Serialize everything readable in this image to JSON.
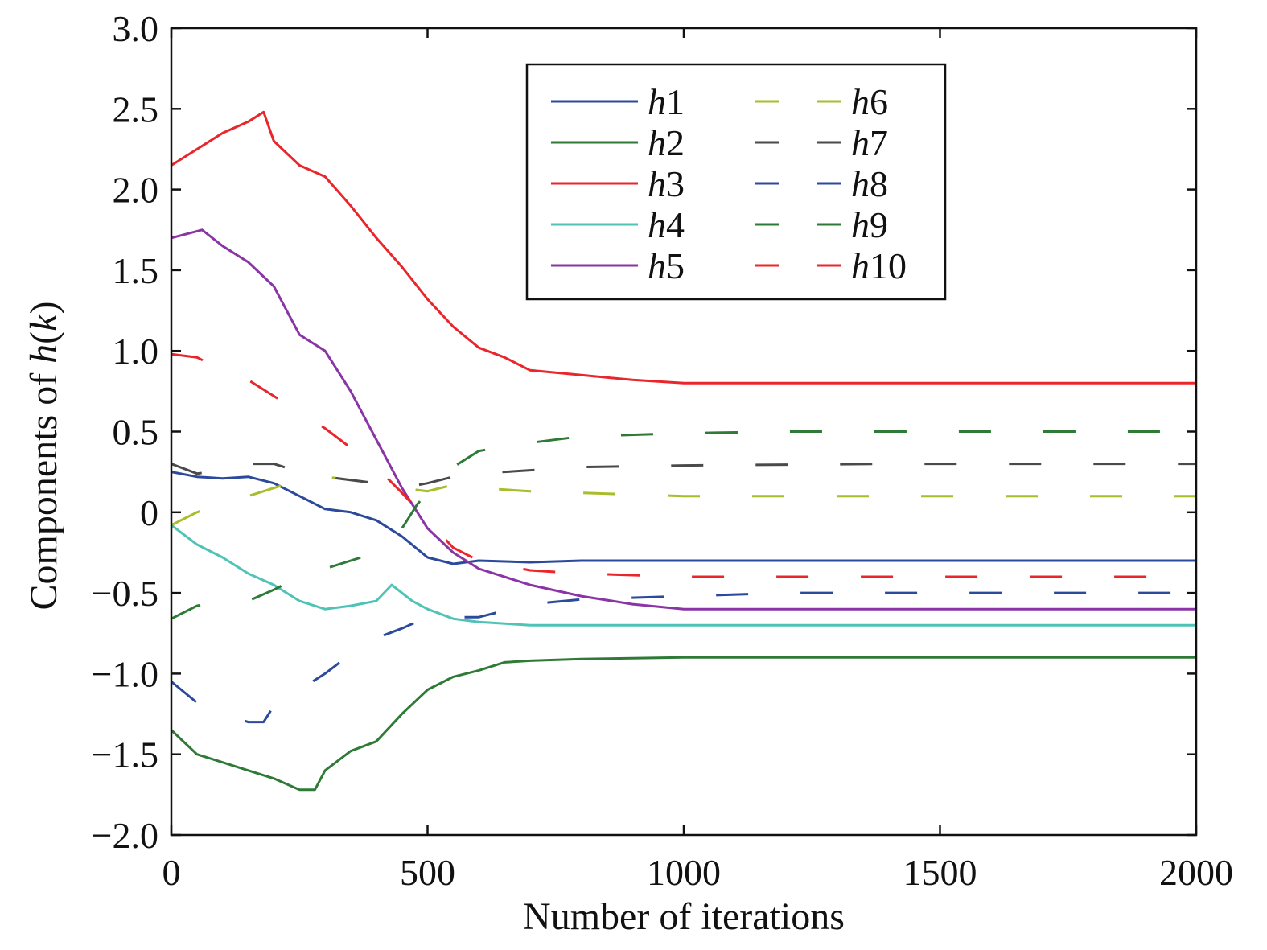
{
  "chart_data": {
    "type": "line",
    "title": "",
    "xlabel": "Number of iterations",
    "ylabel_prefix": "Components of ",
    "ylabel_var": "h",
    "ylabel_arg": "(k)",
    "xlim": [
      0,
      2000
    ],
    "ylim": [
      -2.0,
      3.0
    ],
    "xticks": [
      0,
      500,
      1000,
      1500,
      2000
    ],
    "xtick_labels": [
      "0",
      "500",
      "1000",
      "1500",
      "2000"
    ],
    "yticks": [
      3.0,
      2.5,
      2.0,
      1.5,
      1.0,
      0.5,
      0,
      -0.5,
      -1.0,
      -1.5,
      -2.0
    ],
    "ytick_labels": [
      "3.0",
      "2.5",
      "2.0",
      "1.5",
      "1.0",
      "0.5",
      "0",
      "−0.5",
      "−1.0",
      "−1.5",
      "−2.0"
    ],
    "grid": false,
    "legend_position": "top-center",
    "series": [
      {
        "name": "h1",
        "var": "h",
        "sub": "1",
        "color": "#2c4a9c",
        "dashed": false,
        "points": [
          [
            0,
            0.25
          ],
          [
            50,
            0.22
          ],
          [
            100,
            0.21
          ],
          [
            150,
            0.22
          ],
          [
            200,
            0.18
          ],
          [
            250,
            0.1
          ],
          [
            300,
            0.02
          ],
          [
            350,
            0.0
          ],
          [
            400,
            -0.05
          ],
          [
            450,
            -0.15
          ],
          [
            500,
            -0.28
          ],
          [
            550,
            -0.32
          ],
          [
            600,
            -0.3
          ],
          [
            700,
            -0.31
          ],
          [
            800,
            -0.3
          ],
          [
            1000,
            -0.3
          ],
          [
            2000,
            -0.3
          ]
        ]
      },
      {
        "name": "h2",
        "var": "h",
        "sub": "2",
        "color": "#2e7a36",
        "dashed": false,
        "points": [
          [
            0,
            -1.35
          ],
          [
            50,
            -1.5
          ],
          [
            100,
            -1.55
          ],
          [
            150,
            -1.6
          ],
          [
            200,
            -1.65
          ],
          [
            250,
            -1.72
          ],
          [
            280,
            -1.72
          ],
          [
            300,
            -1.6
          ],
          [
            350,
            -1.48
          ],
          [
            400,
            -1.42
          ],
          [
            450,
            -1.25
          ],
          [
            500,
            -1.1
          ],
          [
            550,
            -1.02
          ],
          [
            600,
            -0.98
          ],
          [
            650,
            -0.93
          ],
          [
            700,
            -0.92
          ],
          [
            800,
            -0.91
          ],
          [
            1000,
            -0.9
          ],
          [
            2000,
            -0.9
          ]
        ]
      },
      {
        "name": "h3",
        "var": "h",
        "sub": "3",
        "color": "#e8262b",
        "dashed": false,
        "points": [
          [
            0,
            2.15
          ],
          [
            50,
            2.25
          ],
          [
            100,
            2.35
          ],
          [
            150,
            2.42
          ],
          [
            180,
            2.48
          ],
          [
            200,
            2.3
          ],
          [
            250,
            2.15
          ],
          [
            300,
            2.08
          ],
          [
            350,
            1.9
          ],
          [
            400,
            1.7
          ],
          [
            450,
            1.52
          ],
          [
            500,
            1.32
          ],
          [
            550,
            1.15
          ],
          [
            600,
            1.02
          ],
          [
            650,
            0.96
          ],
          [
            700,
            0.88
          ],
          [
            800,
            0.85
          ],
          [
            900,
            0.82
          ],
          [
            1000,
            0.8
          ],
          [
            1100,
            0.8
          ],
          [
            2000,
            0.8
          ]
        ]
      },
      {
        "name": "h4",
        "var": "h",
        "sub": "4",
        "color": "#4fc3b6",
        "dashed": false,
        "points": [
          [
            0,
            -0.08
          ],
          [
            50,
            -0.2
          ],
          [
            100,
            -0.28
          ],
          [
            150,
            -0.38
          ],
          [
            200,
            -0.45
          ],
          [
            250,
            -0.55
          ],
          [
            300,
            -0.6
          ],
          [
            350,
            -0.58
          ],
          [
            400,
            -0.55
          ],
          [
            430,
            -0.45
          ],
          [
            470,
            -0.55
          ],
          [
            500,
            -0.6
          ],
          [
            550,
            -0.66
          ],
          [
            600,
            -0.68
          ],
          [
            700,
            -0.7
          ],
          [
            800,
            -0.7
          ],
          [
            1000,
            -0.7
          ],
          [
            2000,
            -0.7
          ]
        ]
      },
      {
        "name": "h5",
        "var": "h",
        "sub": "5",
        "color": "#8a34a6",
        "dashed": false,
        "points": [
          [
            0,
            1.7
          ],
          [
            60,
            1.75
          ],
          [
            100,
            1.65
          ],
          [
            150,
            1.55
          ],
          [
            200,
            1.4
          ],
          [
            250,
            1.1
          ],
          [
            300,
            1.0
          ],
          [
            350,
            0.75
          ],
          [
            400,
            0.45
          ],
          [
            450,
            0.15
          ],
          [
            500,
            -0.1
          ],
          [
            550,
            -0.25
          ],
          [
            600,
            -0.35
          ],
          [
            700,
            -0.45
          ],
          [
            800,
            -0.52
          ],
          [
            900,
            -0.57
          ],
          [
            1000,
            -0.6
          ],
          [
            2000,
            -0.6
          ]
        ]
      },
      {
        "name": "h6",
        "var": "h",
        "sub": "6",
        "color": "#a8bc2c",
        "dashed": true,
        "points": [
          [
            0,
            -0.08
          ],
          [
            50,
            0.0
          ],
          [
            100,
            0.05
          ],
          [
            150,
            0.1
          ],
          [
            200,
            0.15
          ],
          [
            250,
            0.2
          ],
          [
            300,
            0.22
          ],
          [
            350,
            0.2
          ],
          [
            400,
            0.18
          ],
          [
            450,
            0.15
          ],
          [
            500,
            0.13
          ],
          [
            550,
            0.17
          ],
          [
            600,
            0.15
          ],
          [
            700,
            0.13
          ],
          [
            800,
            0.12
          ],
          [
            1000,
            0.1
          ],
          [
            2000,
            0.1
          ]
        ]
      },
      {
        "name": "h7",
        "var": "h",
        "sub": "7",
        "color": "#4a4a4a",
        "dashed": true,
        "points": [
          [
            0,
            0.3
          ],
          [
            50,
            0.24
          ],
          [
            100,
            0.26
          ],
          [
            150,
            0.3
          ],
          [
            200,
            0.3
          ],
          [
            250,
            0.25
          ],
          [
            300,
            0.22
          ],
          [
            350,
            0.2
          ],
          [
            400,
            0.18
          ],
          [
            450,
            0.15
          ],
          [
            500,
            0.18
          ],
          [
            550,
            0.22
          ],
          [
            600,
            0.24
          ],
          [
            700,
            0.26
          ],
          [
            800,
            0.28
          ],
          [
            1000,
            0.29
          ],
          [
            1400,
            0.3
          ],
          [
            2000,
            0.3
          ]
        ]
      },
      {
        "name": "h8",
        "var": "h",
        "sub": "8",
        "color": "#2c4a9c",
        "dashed": true,
        "points": [
          [
            0,
            -1.05
          ],
          [
            50,
            -1.18
          ],
          [
            100,
            -1.25
          ],
          [
            150,
            -1.3
          ],
          [
            180,
            -1.3
          ],
          [
            200,
            -1.2
          ],
          [
            250,
            -1.1
          ],
          [
            300,
            -1.0
          ],
          [
            350,
            -0.88
          ],
          [
            400,
            -0.78
          ],
          [
            450,
            -0.72
          ],
          [
            500,
            -0.65
          ],
          [
            550,
            -0.65
          ],
          [
            600,
            -0.65
          ],
          [
            700,
            -0.57
          ],
          [
            800,
            -0.54
          ],
          [
            1000,
            -0.52
          ],
          [
            1200,
            -0.5
          ],
          [
            2000,
            -0.5
          ]
        ]
      },
      {
        "name": "h9",
        "var": "h",
        "sub": "9",
        "color": "#2e7a36",
        "dashed": true,
        "points": [
          [
            0,
            -0.66
          ],
          [
            50,
            -0.58
          ],
          [
            100,
            -0.55
          ],
          [
            150,
            -0.55
          ],
          [
            200,
            -0.48
          ],
          [
            250,
            -0.4
          ],
          [
            300,
            -0.35
          ],
          [
            350,
            -0.3
          ],
          [
            400,
            -0.25
          ],
          [
            450,
            -0.1
          ],
          [
            480,
            0.05
          ],
          [
            500,
            0.12
          ],
          [
            550,
            0.28
          ],
          [
            600,
            0.38
          ],
          [
            700,
            0.43
          ],
          [
            800,
            0.47
          ],
          [
            1000,
            0.49
          ],
          [
            1200,
            0.5
          ],
          [
            2000,
            0.5
          ]
        ]
      },
      {
        "name": "h10",
        "var": "h",
        "sub": "10",
        "color": "#e8262b",
        "dashed": true,
        "points": [
          [
            0,
            0.98
          ],
          [
            50,
            0.96
          ],
          [
            100,
            0.88
          ],
          [
            150,
            0.82
          ],
          [
            200,
            0.72
          ],
          [
            250,
            0.62
          ],
          [
            300,
            0.52
          ],
          [
            350,
            0.4
          ],
          [
            400,
            0.28
          ],
          [
            450,
            0.12
          ],
          [
            500,
            -0.05
          ],
          [
            550,
            -0.22
          ],
          [
            600,
            -0.3
          ],
          [
            700,
            -0.36
          ],
          [
            800,
            -0.38
          ],
          [
            1000,
            -0.4
          ],
          [
            2000,
            -0.4
          ]
        ]
      }
    ]
  }
}
